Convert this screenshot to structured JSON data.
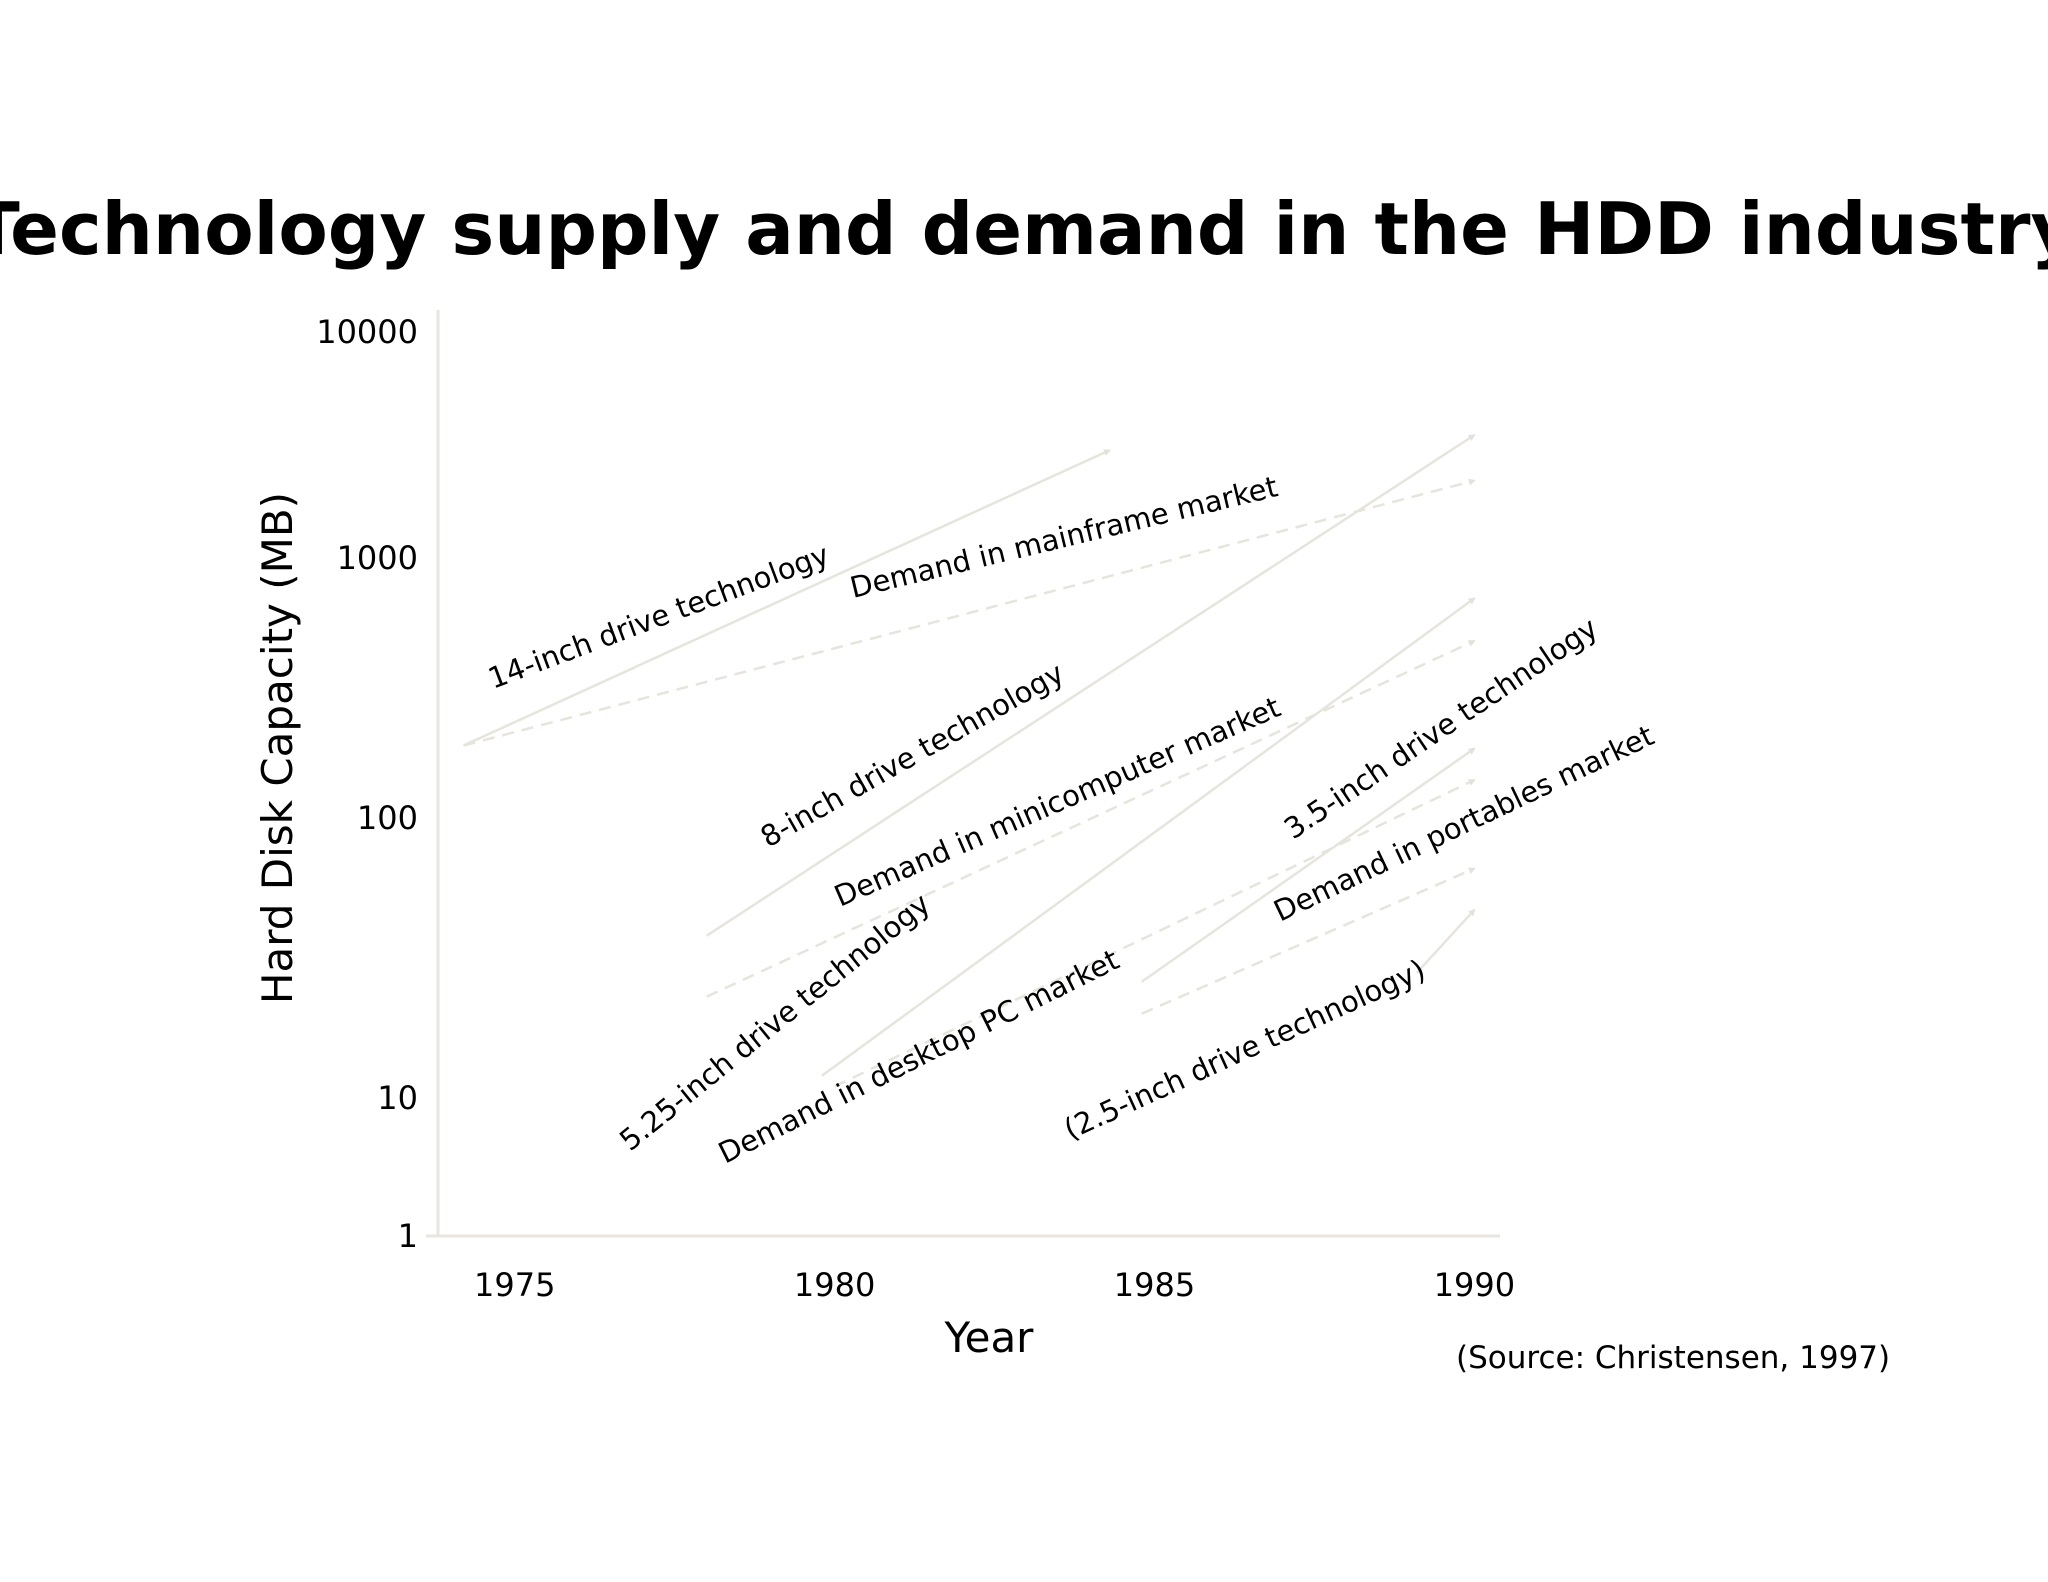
{
  "title": "Technology supply and demand in the HDD industry",
  "source": "(Source: Christensen, 1997)",
  "colors": {
    "background": "#ffffff",
    "axis": "#e8e6df",
    "technology_line": "#e6e4dc",
    "demand_line": "#e6e4dc",
    "text": "#000000"
  },
  "chart_data": {
    "type": "line",
    "title": "Technology supply and demand in the HDD industry",
    "xlabel": "Year",
    "ylabel": "Hard Disk Capacity (MB)",
    "x_ticks": [
      "1975",
      "1980",
      "1985",
      "1990"
    ],
    "y_ticks": [
      "1",
      "10",
      "100",
      "1000",
      "10000"
    ],
    "x_tick_values": [
      1975,
      1980,
      1985,
      1990
    ],
    "y_tick_values": [
      1,
      10,
      100,
      1000,
      10000
    ],
    "xlim": [
      1973.8,
      1990.4
    ],
    "y_scale": "log",
    "ylim": [
      1,
      10000
    ],
    "grid": false,
    "legend": "none",
    "series": [
      {
        "name": "14-inch drive technology",
        "style": "solid",
        "points": [
          [
            1974.2,
            190
          ],
          [
            1984.3,
            3000
          ]
        ]
      },
      {
        "name": "Demand in mainframe market",
        "style": "dashed",
        "points": [
          [
            1974.2,
            190
          ],
          [
            1990.0,
            2200
          ]
        ]
      },
      {
        "name": "8-inch drive technology",
        "style": "solid",
        "points": [
          [
            1978.0,
            38
          ],
          [
            1990.0,
            3500
          ]
        ]
      },
      {
        "name": "Demand in minicomputer market",
        "style": "dashed",
        "points": [
          [
            1978.0,
            23
          ],
          [
            1990.0,
            480
          ]
        ]
      },
      {
        "name": "5.25-inch drive technology",
        "style": "solid",
        "points": [
          [
            1979.8,
            12
          ],
          [
            1990.0,
            700
          ]
        ]
      },
      {
        "name": "Demand in desktop PC market",
        "style": "dashed",
        "points": [
          [
            1980.0,
            11
          ],
          [
            1990.0,
            140
          ]
        ]
      },
      {
        "name": "3.5-inch drive technology",
        "style": "solid",
        "points": [
          [
            1984.8,
            26
          ],
          [
            1990.0,
            185
          ]
        ]
      },
      {
        "name": "Demand in portables market",
        "style": "dashed",
        "points": [
          [
            1984.8,
            20
          ],
          [
            1990.0,
            66
          ]
        ]
      },
      {
        "name": "(2.5-inch drive technology)",
        "style": "solid",
        "points": [
          [
            1989.1,
            28
          ],
          [
            1990.0,
            47
          ]
        ]
      }
    ],
    "annotations": [
      {
        "text": "14-inch drive technology"
      },
      {
        "text": "Demand in mainframe market"
      },
      {
        "text": "8-inch drive technology"
      },
      {
        "text": "Demand in minicomputer market"
      },
      {
        "text": "3.5-inch drive technology"
      },
      {
        "text": "Demand in portables market"
      },
      {
        "text": "5.25-inch drive technology"
      },
      {
        "text": "Demand in desktop PC market"
      },
      {
        "text": "(2.5-inch drive technology)"
      }
    ]
  }
}
